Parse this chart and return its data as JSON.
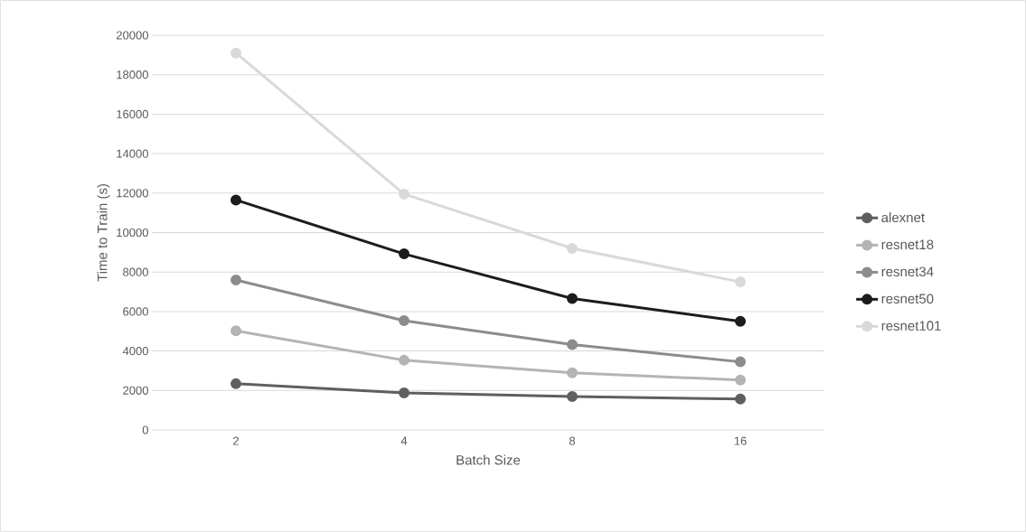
{
  "chart_data": {
    "type": "line",
    "xlabel": "Batch Size",
    "ylabel": "Time to Train (s)",
    "categories": [
      "2",
      "4",
      "8",
      "16"
    ],
    "series": [
      {
        "name": "alexnet",
        "color": "#5f5f5f",
        "values": [
          2340,
          1880,
          1690,
          1570
        ]
      },
      {
        "name": "resnet18",
        "color": "#b4b4b4",
        "values": [
          5020,
          3530,
          2890,
          2530
        ]
      },
      {
        "name": "resnet34",
        "color": "#8c8c8c",
        "values": [
          7600,
          5540,
          4320,
          3450
        ]
      },
      {
        "name": "resnet50",
        "color": "#1c1c1c",
        "values": [
          11650,
          8920,
          6660,
          5500
        ]
      },
      {
        "name": "resnet101",
        "color": "#d9d9d9",
        "values": [
          19100,
          11950,
          9200,
          7500
        ]
      }
    ],
    "ylim": [
      0,
      20000
    ],
    "yticks": [
      0,
      2000,
      4000,
      6000,
      8000,
      10000,
      12000,
      14000,
      16000,
      18000,
      20000
    ],
    "grid": "y",
    "legend": "right",
    "marker": "circle",
    "line_style": "solid"
  }
}
